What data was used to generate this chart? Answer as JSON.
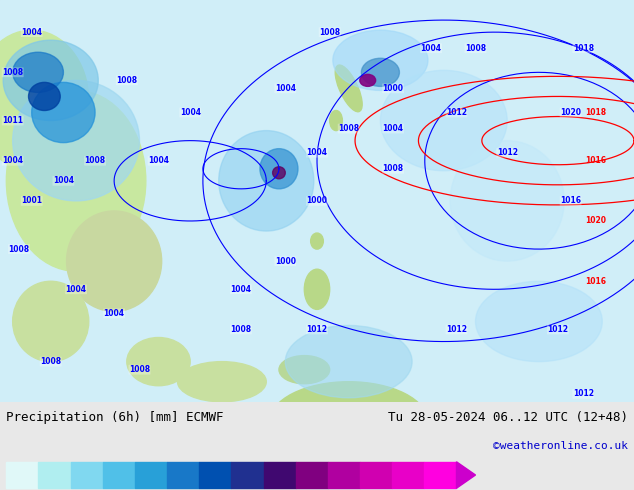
{
  "title_left": "Precipitation (6h) [mm] ECMWF",
  "title_right": "Tu 28-05-2024 06..12 UTC (12+48)",
  "credit": "©weatheronline.co.uk",
  "colorbar_levels": [
    0.1,
    0.5,
    1,
    2,
    5,
    10,
    15,
    20,
    25,
    30,
    35,
    40,
    45,
    50
  ],
  "colorbar_colors": [
    "#e0f8f8",
    "#b0eef0",
    "#80d8f0",
    "#50c0e8",
    "#28a0d8",
    "#1878c8",
    "#0050b0",
    "#203090",
    "#400870",
    "#800080",
    "#b000a0",
    "#d000b0",
    "#e800c8",
    "#ff00e0"
  ],
  "arrow_color": "#cc00cc",
  "background_color": "#e8e8e8",
  "map_background": "#cce8ff",
  "text_color": "#000000",
  "credit_color": "#0000cc",
  "bottom_bar_height": 0.18,
  "title_fontsize": 9,
  "credit_fontsize": 8,
  "tick_fontsize": 7.5
}
